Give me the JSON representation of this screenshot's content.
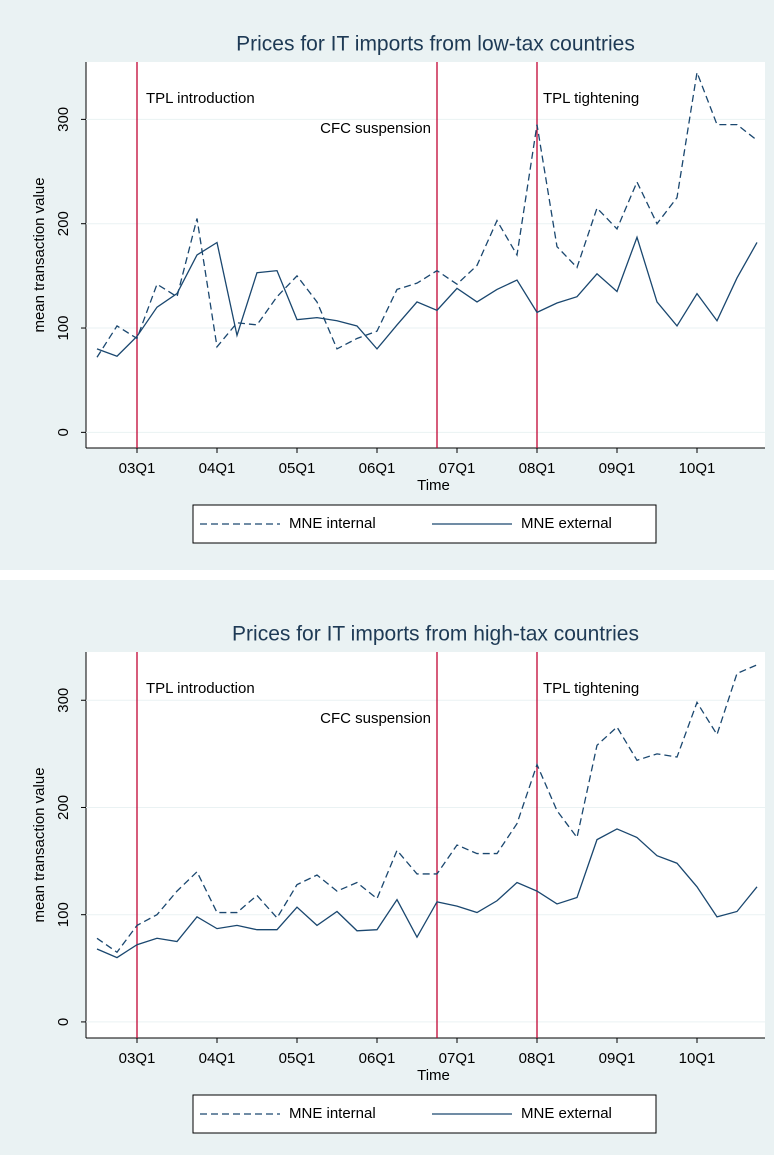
{
  "chart_data": [
    {
      "type": "line",
      "title": "Prices for IT imports from low-tax countries",
      "x_label": "Time",
      "y_label": "mean transaction value",
      "categories": [
        null,
        null,
        "03Q1",
        null,
        null,
        null,
        "04Q1",
        null,
        null,
        null,
        "05Q1",
        null,
        null,
        null,
        "06Q1",
        null,
        null,
        null,
        "07Q1",
        null,
        null,
        null,
        "08Q1",
        null,
        null,
        null,
        "09Q1",
        null,
        null,
        null,
        "10Q1",
        null,
        null,
        null
      ],
      "series": [
        {
          "name": "MNE internal",
          "color": "#1a476f",
          "dash": "dashed",
          "values": [
            72,
            102,
            90,
            142,
            130,
            205,
            82,
            105,
            103,
            130,
            150,
            125,
            80,
            90,
            97,
            137,
            143,
            155,
            142,
            160,
            203,
            170,
            295,
            178,
            158,
            215,
            195,
            240,
            200,
            225,
            345,
            295,
            295,
            280
          ]
        },
        {
          "name": "MNE external",
          "color": "#1a476f",
          "dash": "solid",
          "values": [
            80,
            73,
            92,
            120,
            133,
            170,
            182,
            93,
            153,
            155,
            108,
            110,
            107,
            102,
            80,
            103,
            125,
            117,
            138,
            125,
            137,
            146,
            115,
            124,
            130,
            152,
            135,
            187,
            125,
            102,
            133,
            107,
            148,
            182
          ]
        }
      ],
      "annotations": [
        "TPL introduction",
        "CFC suspension",
        "TPL tightening"
      ],
      "event_color": "#c10534",
      "ylim": [
        -15,
        355
      ],
      "yticks": [
        0,
        100,
        200,
        300
      ],
      "grid": true
    },
    {
      "type": "line",
      "title": "Prices for IT imports from high-tax countries",
      "x_label": "Time",
      "y_label": "mean transaction value",
      "categories": [
        null,
        null,
        "03Q1",
        null,
        null,
        null,
        "04Q1",
        null,
        null,
        null,
        "05Q1",
        null,
        null,
        null,
        "06Q1",
        null,
        null,
        null,
        "07Q1",
        null,
        null,
        null,
        "08Q1",
        null,
        null,
        null,
        "09Q1",
        null,
        null,
        null,
        "10Q1",
        null,
        null,
        null
      ],
      "series": [
        {
          "name": "MNE internal",
          "color": "#1a476f",
          "dash": "dashed",
          "values": [
            78,
            65,
            90,
            100,
            122,
            140,
            102,
            102,
            118,
            97,
            128,
            137,
            122,
            130,
            115,
            160,
            138,
            138,
            165,
            157,
            157,
            185,
            240,
            197,
            172,
            258,
            275,
            244,
            250,
            247,
            298,
            268,
            325,
            333
          ]
        },
        {
          "name": "MNE external",
          "color": "#1a476f",
          "dash": "solid",
          "values": [
            68,
            60,
            72,
            78,
            75,
            98,
            87,
            90,
            86,
            86,
            107,
            90,
            103,
            85,
            86,
            114,
            79,
            112,
            108,
            102,
            113,
            130,
            122,
            110,
            116,
            170,
            180,
            172,
            155,
            148,
            126,
            98,
            103,
            126
          ]
        }
      ],
      "annotations": [
        "TPL introduction",
        "CFC suspension",
        "TPL tightening"
      ],
      "event_color": "#c10534",
      "ylim": [
        -15,
        345
      ],
      "yticks": [
        0,
        100,
        200,
        300
      ],
      "grid": true
    }
  ]
}
